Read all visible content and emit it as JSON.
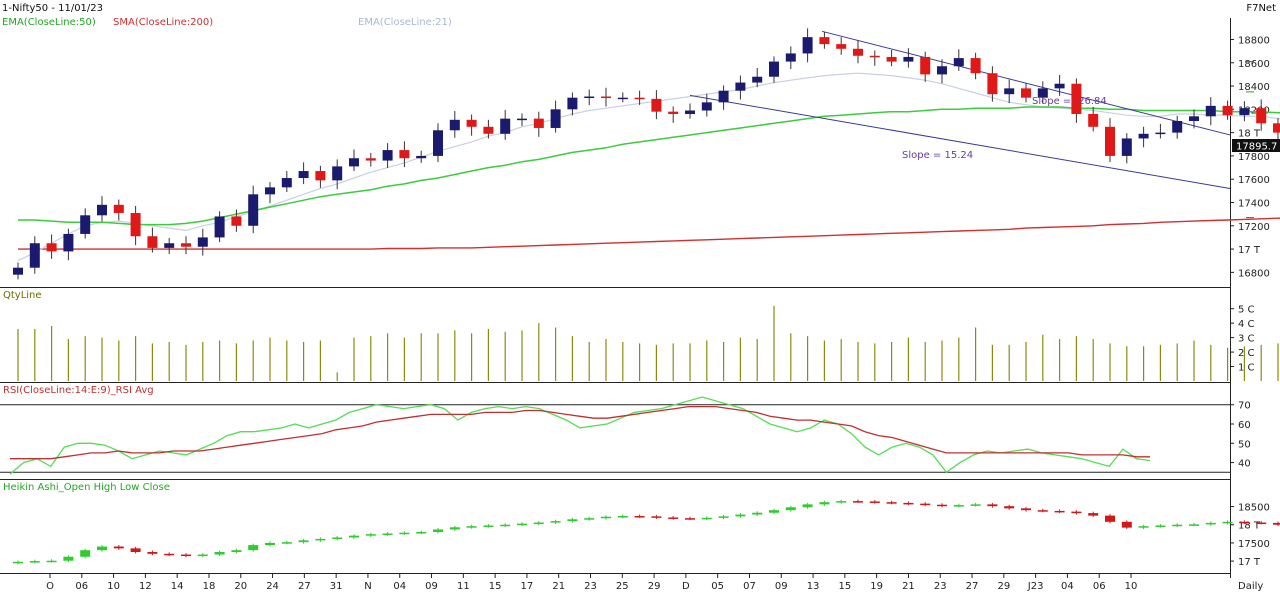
{
  "header": {
    "title": "1-Nifty50 - 11/01/23",
    "brand": "F7Net",
    "legend": [
      {
        "label": "EMA(CloseLine:50)",
        "color": "#22a722"
      },
      {
        "label": "SMA(CloseLine:200)",
        "color": "#d03030"
      },
      {
        "label": "EMA(CloseLine:21)",
        "color": "#a8b8d8"
      }
    ],
    "last_price": "17895.7"
  },
  "chart_data": [
    {
      "type": "candlestick",
      "name": "price",
      "ylim": [
        16700,
        18950
      ],
      "yticks": [
        {
          "v": 18800,
          "label": "18800"
        },
        {
          "v": 18600,
          "label": "18600"
        },
        {
          "v": 18400,
          "label": "18400"
        },
        {
          "v": 18200,
          "label": "18200"
        },
        {
          "v": 18000,
          "label": "18 T"
        },
        {
          "v": 17800,
          "label": "17800"
        },
        {
          "v": 17600,
          "label": "17600"
        },
        {
          "v": 17400,
          "label": "17400"
        },
        {
          "v": 17200,
          "label": "17200"
        },
        {
          "v": 17000,
          "label": "17 T"
        },
        {
          "v": 16800,
          "label": "16800"
        }
      ],
      "closes": [
        16840,
        17050,
        16980,
        17130,
        17290,
        17380,
        17310,
        17110,
        17010,
        17050,
        17020,
        17100,
        17280,
        17200,
        17470,
        17530,
        17610,
        17670,
        17590,
        17710,
        17780,
        17760,
        17850,
        17780,
        17800,
        18020,
        18110,
        18050,
        17990,
        18120,
        18120,
        18040,
        18200,
        18300,
        18310,
        18300,
        18300,
        18290,
        18180,
        18160,
        18190,
        18260,
        18360,
        18430,
        18480,
        18610,
        18680,
        18820,
        18760,
        18720,
        18660,
        18650,
        18610,
        18650,
        18500,
        18570,
        18640,
        18510,
        18330,
        18380,
        18300,
        18380,
        18420,
        18160,
        18050,
        17800,
        17950,
        17990,
        18000,
        18100,
        18140,
        18230,
        18150,
        18210,
        18080,
        18000,
        17900,
        18100,
        17900,
        17895.7
      ],
      "annotations": [
        {
          "label": "Slope = -26.84"
        },
        {
          "label": "Slope = 15.24"
        }
      ],
      "ema21": [
        16900,
        16970,
        17050,
        17130,
        17200,
        17230,
        17240,
        17220,
        17200,
        17180,
        17160,
        17200,
        17230,
        17280,
        17320,
        17370,
        17420,
        17470,
        17520,
        17560,
        17610,
        17660,
        17700,
        17740,
        17790,
        17840,
        17880,
        17920,
        17970,
        18000,
        18050,
        18080,
        18120,
        18160,
        18190,
        18210,
        18230,
        18250,
        18270,
        18290,
        18310,
        18330,
        18350,
        18370,
        18400,
        18430,
        18450,
        18470,
        18490,
        18500,
        18510,
        18500,
        18490,
        18470,
        18450,
        18420,
        18380,
        18340,
        18300,
        18260,
        18240,
        18220,
        18210,
        18200,
        18190,
        18170,
        18150,
        18140,
        18140,
        18160,
        18160,
        18150,
        18150,
        18140,
        18140,
        18120,
        18110,
        18110,
        18100,
        18090
      ],
      "ema50": [
        17250,
        17250,
        17240,
        17230,
        17230,
        17230,
        17220,
        17210,
        17210,
        17210,
        17220,
        17240,
        17270,
        17300,
        17330,
        17360,
        17390,
        17420,
        17450,
        17470,
        17490,
        17510,
        17540,
        17560,
        17590,
        17610,
        17640,
        17670,
        17700,
        17720,
        17750,
        17770,
        17800,
        17830,
        17850,
        17870,
        17900,
        17920,
        17940,
        17960,
        17980,
        18000,
        18020,
        18040,
        18060,
        18080,
        18100,
        18120,
        18140,
        18150,
        18160,
        18170,
        18180,
        18180,
        18190,
        18200,
        18200,
        18210,
        18210,
        18210,
        18220,
        18220,
        18220,
        18210,
        18210,
        18200,
        18200,
        18190,
        18190,
        18190,
        18190,
        18190,
        18180,
        18180,
        18180,
        18170,
        18170,
        18160,
        18160,
        18150
      ],
      "sma200": [
        17000,
        17000,
        17000,
        17000,
        17000,
        17000,
        17000,
        17000,
        17000,
        17000,
        17000,
        17000,
        17000,
        17000,
        17000,
        17000,
        17000,
        17000,
        17000,
        17000,
        17000,
        17000,
        17005,
        17005,
        17005,
        17010,
        17010,
        17010,
        17015,
        17020,
        17025,
        17030,
        17035,
        17040,
        17045,
        17050,
        17055,
        17060,
        17065,
        17070,
        17075,
        17080,
        17085,
        17090,
        17095,
        17100,
        17105,
        17110,
        17115,
        17120,
        17125,
        17130,
        17135,
        17140,
        17145,
        17150,
        17155,
        17160,
        17165,
        17170,
        17180,
        17185,
        17190,
        17195,
        17200,
        17210,
        17215,
        17220,
        17230,
        17235,
        17240,
        17245,
        17250,
        17255,
        17260,
        17265,
        17270,
        17275,
        17280,
        17285
      ]
    },
    {
      "type": "bar",
      "name": "QtyLine",
      "title": "QtyLine",
      "yticks": [
        {
          "v": 5,
          "label": "5 C"
        },
        {
          "v": 4,
          "label": "4 C"
        },
        {
          "v": 3,
          "label": "3 C"
        },
        {
          "v": 2,
          "label": "2 C"
        },
        {
          "v": 1,
          "label": "1 C"
        }
      ],
      "ylim": [
        0,
        5.6
      ],
      "values": [
        3.6,
        3.6,
        3.8,
        2.9,
        3.1,
        3.0,
        2.8,
        3.1,
        2.6,
        2.7,
        2.5,
        2.7,
        2.8,
        2.6,
        2.8,
        3.0,
        2.8,
        2.7,
        2.8,
        0.6,
        3.0,
        3.1,
        3.3,
        3.0,
        3.3,
        3.3,
        3.5,
        3.3,
        3.6,
        3.4,
        3.5,
        4.0,
        3.7,
        3.1,
        2.7,
        2.9,
        2.7,
        2.6,
        2.5,
        2.6,
        2.6,
        2.8,
        2.7,
        3.0,
        2.9,
        5.2,
        3.3,
        3.1,
        2.8,
        2.9,
        2.7,
        2.6,
        2.7,
        3.0,
        2.7,
        2.8,
        3.0,
        3.7,
        2.5,
        2.5,
        2.7,
        3.2,
        2.9,
        3.1,
        2.9,
        2.6,
        2.4,
        2.4,
        2.5,
        2.6,
        2.8,
        2.5,
        2.3,
        2.4,
        2.5,
        2.6,
        2.8,
        2.5,
        2.5,
        2.4
      ]
    },
    {
      "type": "line",
      "name": "RSI",
      "title": "RSI(CloseLine:14:E:9)_RSI Avg",
      "ylim": [
        32,
        74
      ],
      "yticks": [
        {
          "v": 70,
          "label": "70"
        },
        {
          "v": 60,
          "label": "60"
        },
        {
          "v": 50,
          "label": "50"
        },
        {
          "v": 40,
          "label": "40"
        }
      ],
      "reference_lines": [
        70,
        35
      ],
      "series": [
        {
          "color": "#55dd55",
          "values": [
            34,
            40,
            42,
            38,
            48,
            50,
            50,
            49,
            46,
            42,
            44,
            46,
            45,
            44,
            47,
            50,
            54,
            56,
            56,
            57,
            58,
            60,
            58,
            60,
            62,
            66,
            68,
            70,
            69,
            68,
            69,
            70,
            68,
            62,
            66,
            68,
            69,
            68,
            69,
            68,
            65,
            62,
            58,
            59,
            60,
            63,
            66,
            67,
            68,
            70,
            72,
            74,
            72,
            70,
            68,
            64,
            60,
            58,
            56,
            58,
            62,
            60,
            55,
            48,
            44,
            48,
            50,
            48,
            44,
            35,
            40,
            44,
            46,
            45,
            46,
            47,
            45,
            44,
            43,
            42,
            40,
            38,
            47,
            42,
            41
          ]
        },
        {
          "color": "#c03030",
          "values": [
            42,
            42,
            42,
            42,
            43,
            44,
            45,
            45,
            46,
            45,
            45,
            45,
            46,
            46,
            46,
            47,
            48,
            49,
            50,
            51,
            52,
            53,
            54,
            55,
            57,
            58,
            59,
            61,
            62,
            63,
            64,
            65,
            65,
            65,
            65,
            66,
            66,
            66,
            67,
            67,
            66,
            65,
            64,
            63,
            63,
            64,
            65,
            66,
            67,
            68,
            69,
            69,
            69,
            68,
            67,
            66,
            64,
            63,
            62,
            62,
            61,
            60,
            59,
            56,
            54,
            53,
            51,
            49,
            47,
            45,
            45,
            45,
            45,
            45,
            45,
            45,
            45,
            45,
            45,
            44,
            44,
            44,
            44,
            43,
            43
          ]
        }
      ]
    },
    {
      "type": "candlestick",
      "name": "Heikin Ashi",
      "title": "Heikin Ashi_Open High Low Close",
      "ylim": [
        16700,
        18900
      ],
      "yticks": [
        {
          "v": 18500,
          "label": "18500"
        },
        {
          "v": 18000,
          "label": "18 T"
        },
        {
          "v": 17500,
          "label": "17500"
        },
        {
          "v": 17000,
          "label": "17 T"
        }
      ],
      "closes": [
        16980,
        17000,
        17010,
        17120,
        17300,
        17400,
        17350,
        17250,
        17200,
        17180,
        17150,
        17180,
        17250,
        17300,
        17440,
        17500,
        17520,
        17570,
        17610,
        17650,
        17700,
        17740,
        17760,
        17780,
        17800,
        17870,
        17930,
        17960,
        17980,
        18000,
        18030,
        18060,
        18100,
        18150,
        18180,
        18220,
        18240,
        18230,
        18200,
        18180,
        18170,
        18190,
        18230,
        18280,
        18330,
        18400,
        18480,
        18560,
        18620,
        18650,
        18640,
        18620,
        18600,
        18580,
        18550,
        18520,
        18540,
        18560,
        18510,
        18450,
        18400,
        18380,
        18360,
        18320,
        18250,
        18080,
        17920,
        17960,
        17980,
        18000,
        18010,
        18050,
        18080,
        18060,
        18050,
        18000,
        17940,
        17960,
        17920,
        17910
      ]
    }
  ],
  "xaxis": {
    "ticks": [
      "O",
      "06",
      "10",
      "12",
      "14",
      "18",
      "20",
      "24",
      "27",
      "31",
      "N",
      "04",
      "09",
      "11",
      "15",
      "17",
      "21",
      "23",
      "25",
      "29",
      "D",
      "05",
      "07",
      "09",
      "13",
      "15",
      "19",
      "21",
      "23",
      "27",
      "29",
      "J23",
      "04",
      "06",
      "10"
    ],
    "period_label": "Daily"
  }
}
